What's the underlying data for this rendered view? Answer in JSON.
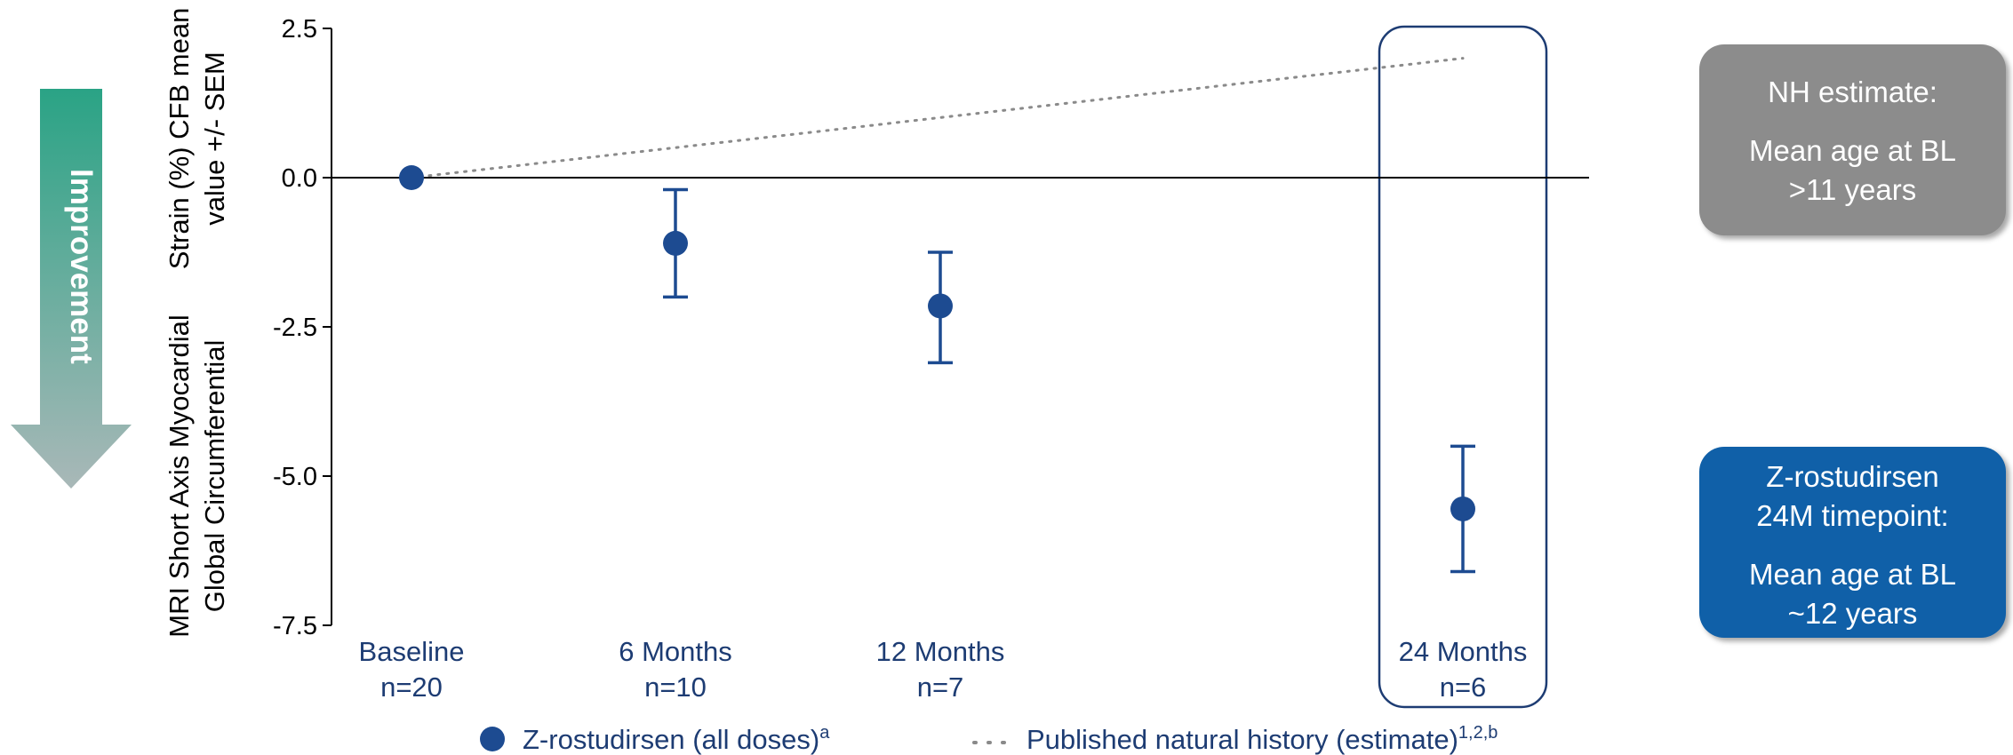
{
  "arrow": {
    "label": "Improvement",
    "color_top": "#2aa385",
    "color_bottom": "#a9b8b8"
  },
  "chart_data": {
    "type": "scatter",
    "ylabel_lines": [
      "MRI Short Axis Myocardial Global Circumferential",
      "Strain (%) CFB mean value +/- SEM"
    ],
    "ylim": [
      -7.5,
      2.5
    ],
    "yticks": [
      2.5,
      0.0,
      -2.5,
      -5.0,
      -7.5
    ],
    "ytick_labels": [
      "2.5",
      "0.0",
      "-2.5",
      "-5.0",
      "-7.5"
    ],
    "x": [
      0,
      6,
      12,
      24
    ],
    "categories": [
      {
        "label": "Baseline",
        "n": "n=20"
      },
      {
        "label": "6 Months",
        "n": "n=10"
      },
      {
        "label": "12 Months",
        "n": "n=7"
      },
      {
        "label": "24 Months",
        "n": "n=6"
      }
    ],
    "series": [
      {
        "name": "Z-rostudirsen (all doses)",
        "superscript": "a",
        "color": "#1d4b91",
        "values": [
          0.0,
          -1.1,
          -2.15,
          -5.55
        ],
        "error_low": [
          0.0,
          -2.0,
          -3.1,
          -6.6
        ],
        "error_high": [
          0.0,
          -0.2,
          -1.25,
          -4.5
        ]
      },
      {
        "name": "Published natural history (estimate)",
        "superscript": "1,2,b",
        "color": "#8a8a8a",
        "style": "dotted",
        "x": [
          0,
          24
        ],
        "values": [
          0.0,
          2.0
        ]
      }
    ],
    "highlight_category": 3,
    "reference_line_y": 0.0
  },
  "side_boxes": {
    "nh": {
      "title": "NH estimate:",
      "line1": "Mean age at BL",
      "line2": ">11 years",
      "color": "#8c8c8c"
    },
    "z": {
      "title1": "Z-rostudirsen",
      "title2": "24M timepoint:",
      "line1": "Mean age at BL",
      "line2": "~12 years",
      "color": "#1060a8"
    }
  }
}
